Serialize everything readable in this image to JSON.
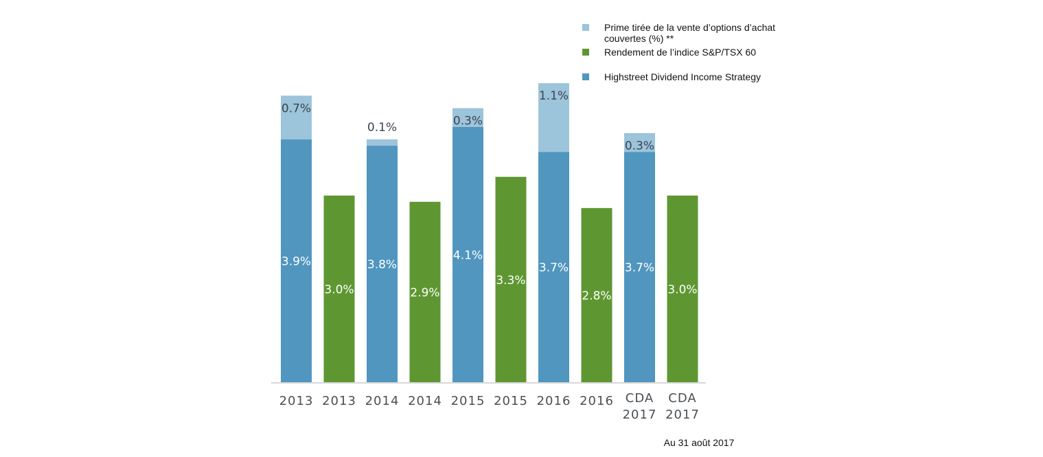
{
  "chart_data": {
    "type": "bar",
    "stacked_bars": [
      {
        "category": "2013",
        "series": "Highstreet Dividend Income Strategy",
        "value": 3.9,
        "value_label": "3.9%",
        "premium": 0.7,
        "premium_label": "0.7%"
      },
      {
        "category": "2013",
        "series": "Rendement de l’indice S&P/TSX 60",
        "value": 3.0,
        "value_label": "3.0%"
      },
      {
        "category": "2014",
        "series": "Highstreet Dividend Income Strategy",
        "value": 3.8,
        "value_label": "3.8%",
        "premium": 0.1,
        "premium_label": "0.1%"
      },
      {
        "category": "2014",
        "series": "Rendement de l’indice S&P/TSX 60",
        "value": 2.9,
        "value_label": "2.9%"
      },
      {
        "category": "2015",
        "series": "Highstreet Dividend Income Strategy",
        "value": 4.1,
        "value_label": "4.1%",
        "premium": 0.3,
        "premium_label": "0.3%"
      },
      {
        "category": "2015",
        "series": "Rendement de l’indice S&P/TSX 60",
        "value": 3.3,
        "value_label": "3.3%"
      },
      {
        "category": "2016",
        "series": "Highstreet Dividend Income Strategy",
        "value": 3.7,
        "value_label": "3.7%",
        "premium": 1.1,
        "premium_label": "1.1%"
      },
      {
        "category": "2016",
        "series": "Rendement de l’indice S&P/TSX 60",
        "value": 2.8,
        "value_label": "2.8%"
      },
      {
        "category": "CDA 2017",
        "series": "Highstreet Dividend Income Strategy",
        "value": 3.7,
        "value_label": "3.7%",
        "premium": 0.3,
        "premium_label": "0.3%"
      },
      {
        "category": "CDA 2017",
        "series": "Rendement de l’indice S&P/TSX 60",
        "value": 3.0,
        "value_label": "3.0%"
      }
    ],
    "tick_labels": [
      [
        "2013"
      ],
      [
        "2013"
      ],
      [
        "2014"
      ],
      [
        "2014"
      ],
      [
        "2015"
      ],
      [
        "2015"
      ],
      [
        "2016"
      ],
      [
        "2016"
      ],
      [
        "CDA",
        "2017"
      ],
      [
        "CDA",
        "2017"
      ]
    ],
    "legend": [
      {
        "label_lines": [
          "Prime tirée de la vente d’options d’achat",
          "couvertes (%) **"
        ],
        "color": "#9cc4da"
      },
      {
        "label_lines": [
          "Rendement de l’indice S&P/TSX 60"
        ],
        "color": "#5e9732"
      },
      {
        "label_lines": [
          "Highstreet Dividend Income Strategy"
        ],
        "color": "#5096bf"
      }
    ],
    "legend_position": "top-right",
    "ylim": [
      0,
      4.6
    ],
    "grid": false,
    "note": "Au 31 août 2017"
  },
  "colors": {
    "premium": "#9cc4da",
    "index": "#5e9732",
    "strategy": "#5096bf",
    "axis": "#d8d8d8"
  }
}
